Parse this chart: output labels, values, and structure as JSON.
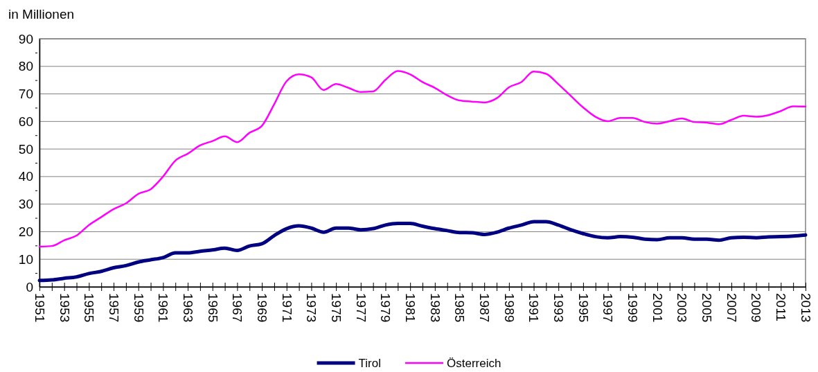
{
  "chart_data": {
    "type": "line",
    "ylabel": "in Millionen",
    "x": [
      1951,
      1952,
      1953,
      1954,
      1955,
      1956,
      1957,
      1958,
      1959,
      1960,
      1961,
      1962,
      1963,
      1964,
      1965,
      1966,
      1967,
      1968,
      1969,
      1970,
      1971,
      1972,
      1973,
      1974,
      1975,
      1976,
      1977,
      1978,
      1979,
      1980,
      1981,
      1982,
      1983,
      1984,
      1985,
      1986,
      1987,
      1988,
      1989,
      1990,
      1991,
      1992,
      1993,
      1994,
      1995,
      1996,
      1997,
      1998,
      1999,
      2000,
      2001,
      2002,
      2003,
      2004,
      2005,
      2006,
      2007,
      2008,
      2009,
      2010,
      2011,
      2012,
      2013
    ],
    "series": [
      {
        "name": "Tirol",
        "color": "#000080",
        "values": [
          2.3,
          2.5,
          3.1,
          3.6,
          4.8,
          5.6,
          6.9,
          7.7,
          9.0,
          9.8,
          10.6,
          12.3,
          12.3,
          12.9,
          13.4,
          14.0,
          13.2,
          14.8,
          15.6,
          18.6,
          21.1,
          22.1,
          21.3,
          19.8,
          21.3,
          21.3,
          20.7,
          21.1,
          22.4,
          23.0,
          23.0,
          22.0,
          21.1,
          20.4,
          19.7,
          19.6,
          19.0,
          19.8,
          21.3,
          22.4,
          23.6,
          23.6,
          22.4,
          20.7,
          19.3,
          18.2,
          17.8,
          18.2,
          18.0,
          17.3,
          17.1,
          17.8,
          17.8,
          17.3,
          17.3,
          16.9,
          17.8,
          18.0,
          17.8,
          18.1,
          18.2,
          18.4,
          18.8
        ]
      },
      {
        "name": "Österreich",
        "color": "#ff00ff",
        "values": [
          14.6,
          14.8,
          16.9,
          18.6,
          22.4,
          25.3,
          28.2,
          30.3,
          33.7,
          35.4,
          40.0,
          45.8,
          48.3,
          51.3,
          52.9,
          54.6,
          52.5,
          55.9,
          58.4,
          66.3,
          74.6,
          77.1,
          76.0,
          71.4,
          73.6,
          72.2,
          70.7,
          70.9,
          75.1,
          78.3,
          77.1,
          74.3,
          72.2,
          69.5,
          67.6,
          67.2,
          66.9,
          68.4,
          72.4,
          74.3,
          78.1,
          77.3,
          73.5,
          69.3,
          65.1,
          61.7,
          60.1,
          61.3,
          61.3,
          59.8,
          59.2,
          60.1,
          61.1,
          59.8,
          59.6,
          59.0,
          60.6,
          62.1,
          61.7,
          62.3,
          63.8,
          65.5,
          65.4
        ]
      }
    ],
    "xlim": [
      1951,
      2013
    ],
    "xticks": [
      1951,
      {
        "value": 1952,
        "label": null
      },
      1953,
      {
        "value": 1954,
        "label": null
      },
      1955,
      {
        "value": 1956,
        "label": null
      },
      1957,
      {
        "value": 1958,
        "label": null
      },
      1959,
      {
        "value": 1960,
        "label": null
      },
      1961,
      {
        "value": 1962,
        "label": null
      },
      1963,
      {
        "value": 1964,
        "label": null
      },
      1965,
      {
        "value": 1966,
        "label": null
      },
      1967,
      {
        "value": 1968,
        "label": null
      },
      1969,
      {
        "value": 1970,
        "label": null
      },
      1971,
      {
        "value": 1972,
        "label": null
      },
      1973,
      {
        "value": 1974,
        "label": null
      },
      1975,
      {
        "value": 1976,
        "label": null
      },
      1977,
      {
        "value": 1978,
        "label": null
      },
      1979,
      {
        "value": 1980,
        "label": null
      },
      1981,
      {
        "value": 1982,
        "label": null
      },
      1983,
      {
        "value": 1984,
        "label": null
      },
      1985,
      {
        "value": 1986,
        "label": null
      },
      1987,
      {
        "value": 1988,
        "label": null
      },
      1989,
      {
        "value": 1990,
        "label": null
      },
      1991,
      {
        "value": 1992,
        "label": null
      },
      1993,
      {
        "value": 1994,
        "label": null
      },
      1995,
      {
        "value": 1996,
        "label": null
      },
      1997,
      {
        "value": 1998,
        "label": null
      },
      1999,
      {
        "value": 2000,
        "label": null
      },
      2001,
      {
        "value": 2002,
        "label": null
      },
      2003,
      {
        "value": 2004,
        "label": null
      },
      2005,
      {
        "value": 2006,
        "label": null
      },
      2007,
      {
        "value": 2008,
        "label": null
      },
      2009,
      {
        "value": 2010,
        "label": null
      },
      2011,
      {
        "value": 2012,
        "label": null
      },
      2013
    ],
    "ylim": [
      0,
      90
    ],
    "yticks": [
      0,
      {
        "value": 5,
        "label": null
      },
      10,
      {
        "value": 15,
        "label": null
      },
      20,
      {
        "value": 25,
        "label": null
      },
      30,
      {
        "value": 35,
        "label": null
      },
      40,
      {
        "value": 45,
        "label": null
      },
      50,
      {
        "value": 55,
        "label": null
      },
      60,
      {
        "value": 65,
        "label": null
      },
      70,
      {
        "value": 75,
        "label": null
      },
      80,
      {
        "value": 85,
        "label": null
      },
      90
    ],
    "grid": "y",
    "legend": "bottom",
    "marker": "none",
    "line_style": "solid"
  }
}
